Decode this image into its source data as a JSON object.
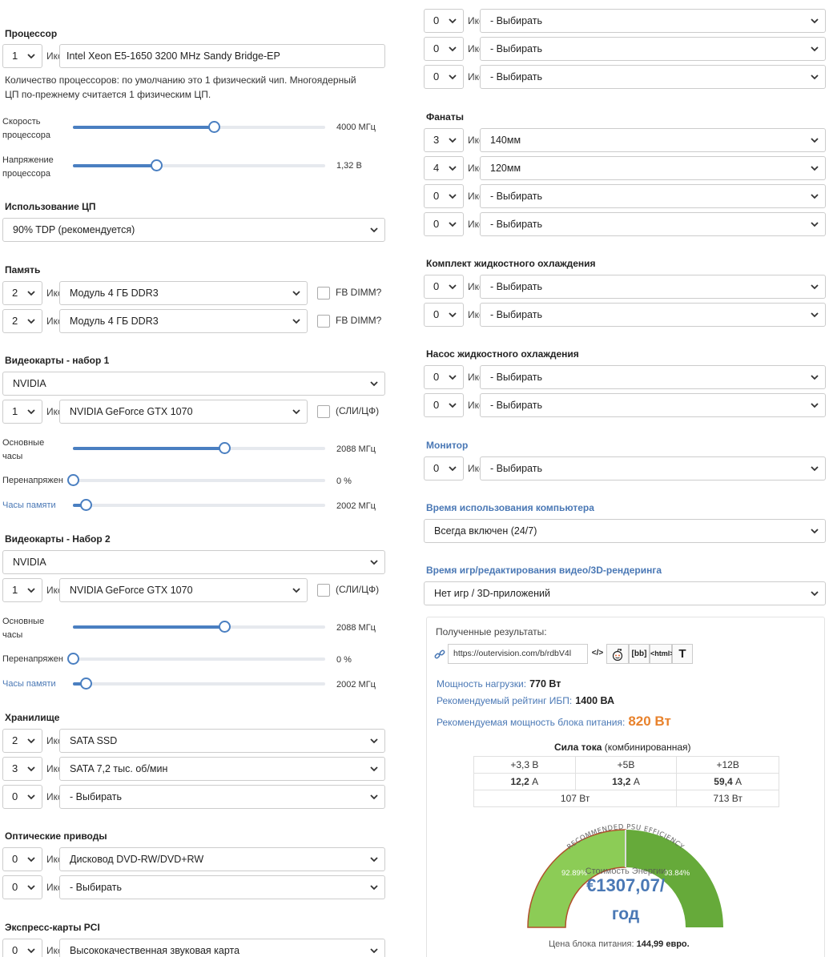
{
  "common": {
    "times_label": "Икс",
    "choose": "- Выбирать"
  },
  "left": {
    "processor": {
      "heading": "Процессор",
      "qty": "1",
      "model": "Intel Xeon E5-1650 3200 MHz Sandy Bridge-EP",
      "note_line1": "Количество процессоров: по умолчанию это 1 физический чип. Многоядерный",
      "note_line2": "ЦП по-прежнему считается 1 физическим ЦП.",
      "speed": {
        "label1": "Скорость",
        "label2": "процессора",
        "value": "4000 МГц",
        "fraction": 0.56
      },
      "voltage": {
        "label1": "Напряжение",
        "label2": "процессора",
        "value": "1,32 В",
        "fraction": 0.33
      }
    },
    "cpu_usage": {
      "heading": "Использование ЦП",
      "value": "90% TDP (рекомендуется)"
    },
    "memory": {
      "heading": "Память",
      "rows": [
        {
          "qty": "2",
          "value": "Модуль 4 ГБ DDR3",
          "check_label": "FB DIMM?"
        },
        {
          "qty": "2",
          "value": "Модуль 4 ГБ DDR3",
          "check_label": "FB DIMM?"
        }
      ]
    },
    "gpu1": {
      "heading": "Видеокарты - набор 1",
      "brand": "NVIDIA",
      "qty": "1",
      "model": "NVIDIA GeForce GTX 1070",
      "check_label": "(СЛИ/ЦФ)",
      "core": {
        "label1": "Основные",
        "label2": "часы",
        "value": "2088 МГц",
        "fraction": 0.6
      },
      "over": {
        "label": "Перенапряжен",
        "value": "0 %",
        "fraction": 0.0
      },
      "mem": {
        "label": "Часы памяти",
        "value": "2002 МГц",
        "fraction": 0.05
      }
    },
    "gpu2": {
      "heading": "Видеокарты - Набор 2",
      "brand": "NVIDIA",
      "qty": "1",
      "model": "NVIDIA GeForce GTX 1070",
      "check_label": "(СЛИ/ЦФ)",
      "core": {
        "label1": "Основные",
        "label2": "часы",
        "value": "2088 МГц",
        "fraction": 0.6
      },
      "over": {
        "label": "Перенапряжен",
        "value": "0 %",
        "fraction": 0.0
      },
      "mem": {
        "label": "Часы памяти",
        "value": "2002 МГц",
        "fraction": 0.05
      }
    },
    "storage": {
      "heading": "Хранилище",
      "rows": [
        {
          "qty": "2",
          "value": "SATA SSD"
        },
        {
          "qty": "3",
          "value": "SATA 7,2 тыс. об/мин"
        },
        {
          "qty": "0",
          "value": "- Выбирать"
        }
      ]
    },
    "optical": {
      "heading": "Оптические приводы",
      "rows": [
        {
          "qty": "0",
          "value": "Дисковод DVD-RW/DVD+RW"
        },
        {
          "qty": "0",
          "value": "- Выбирать"
        }
      ]
    },
    "pci": {
      "heading": "Экспресс-карты PCI",
      "rows": [
        {
          "qty": "0",
          "value": "Высококачественная звуковая карта"
        }
      ]
    }
  },
  "right": {
    "top_rows": [
      {
        "qty": "0",
        "value": "- Выбирать"
      },
      {
        "qty": "0",
        "value": "- Выбирать"
      },
      {
        "qty": "0",
        "value": "- Выбирать"
      }
    ],
    "fans": {
      "heading": "Фанаты",
      "rows": [
        {
          "qty": "3",
          "value": "140мм"
        },
        {
          "qty": "4",
          "value": "120мм"
        },
        {
          "qty": "0",
          "value": "- Выбирать"
        },
        {
          "qty": "0",
          "value": "- Выбирать"
        }
      ]
    },
    "liquid_kit": {
      "heading": "Комплект жидкостного охлаждения",
      "rows": [
        {
          "qty": "0",
          "value": "- Выбирать"
        },
        {
          "qty": "0",
          "value": "- Выбирать"
        }
      ]
    },
    "liquid_pump": {
      "heading": "Насос жидкостного охлаждения",
      "rows": [
        {
          "qty": "0",
          "value": "- Выбирать"
        },
        {
          "qty": "0",
          "value": "- Выбирать"
        }
      ]
    },
    "monitor": {
      "heading": "Монитор",
      "rows": [
        {
          "qty": "0",
          "value": "- Выбирать"
        }
      ]
    },
    "usage_time": {
      "heading": "Время использования компьютера",
      "value": "Всегда включен (24/7)"
    },
    "gaming_time": {
      "heading": "Время игр/редактирования видео/3D-рендеринга",
      "value": "Нет игр / 3D-приложений"
    },
    "results": {
      "title": "Полученные результаты:",
      "link": "https://outervision.com/b/rdbV4l",
      "embed_icon": "</>",
      "bb_label": "[bb]",
      "html_label": "<html>",
      "text_icon": "T",
      "load_label": "Мощность нагрузки:",
      "load_value": "770 Вт",
      "ups_label": "Рекомендуемый рейтинг ИБП:",
      "ups_value": "1400 ВА",
      "psu_label": "Рекомендуемая мощность блока питания:",
      "psu_value": "820 Вт",
      "amps_title_bold": "Сила тока",
      "amps_title_rest": "(комбинированная)",
      "amps": {
        "headers": [
          "+3,3 В",
          "+5В",
          "+12В"
        ],
        "values": [
          "12,2",
          "13,2",
          "59,4"
        ],
        "unit": "А",
        "watts_left": "107 Вт",
        "watts_right": "713 Вт"
      },
      "gauge": {
        "arc_label": "RECOMMENDED PSU EFFICIENCY",
        "left_pct": "92.89%",
        "right_pct": "93.84%",
        "cost_label": "Стоимость Энергии",
        "cost_value": "€1307,07/",
        "cost_unit": "год",
        "colors": {
          "left": "#8ccc56",
          "right": "#66aa3a",
          "border": "#b0502c"
        }
      },
      "psu_price_label": "Цена блока питания:",
      "psu_price_value": "144,99 евро."
    }
  }
}
